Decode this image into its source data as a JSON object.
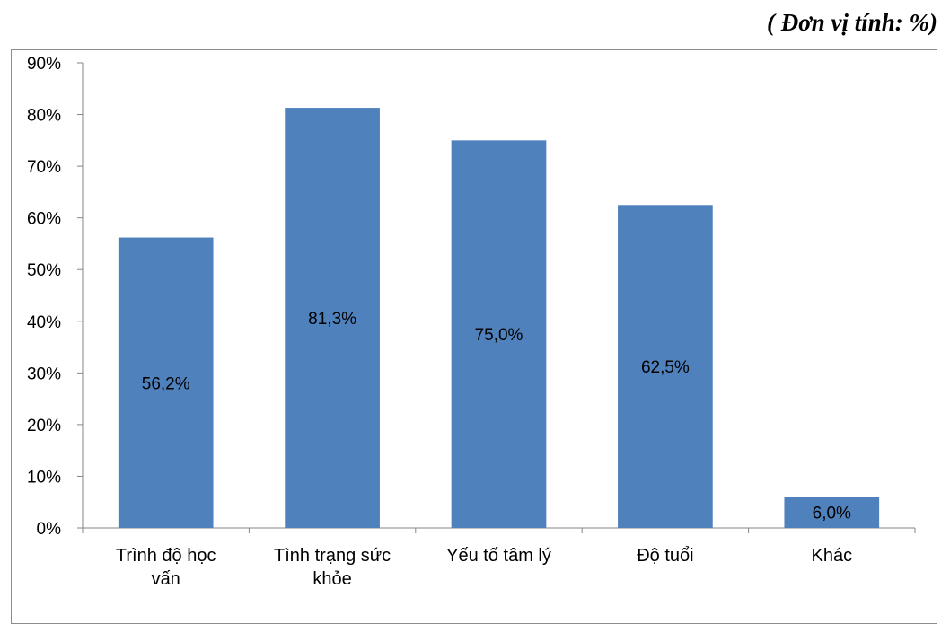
{
  "unit_note": "( Đơn vị tính: %)",
  "colors": {
    "bar": "#4f81bd",
    "axis": "#868686",
    "text": "#000000"
  },
  "chart_data": {
    "type": "bar",
    "categories": [
      [
        "Trình độ học",
        "vấn"
      ],
      [
        "Tình trạng sức",
        "khỏe"
      ],
      [
        "Yếu tố tâm lý"
      ],
      [
        "Độ tuổi"
      ],
      [
        "Khác"
      ]
    ],
    "values": [
      56.2,
      81.3,
      75.0,
      62.5,
      6.0
    ],
    "data_labels": [
      "56,2%",
      "81,3%",
      "75,0%",
      "62,5%",
      "6,0%"
    ],
    "y_ticks": [
      "0%",
      "10%",
      "20%",
      "30%",
      "40%",
      "50%",
      "60%",
      "70%",
      "80%",
      "90%"
    ],
    "ylim": [
      0,
      90
    ],
    "grid": false,
    "legend": "none"
  }
}
